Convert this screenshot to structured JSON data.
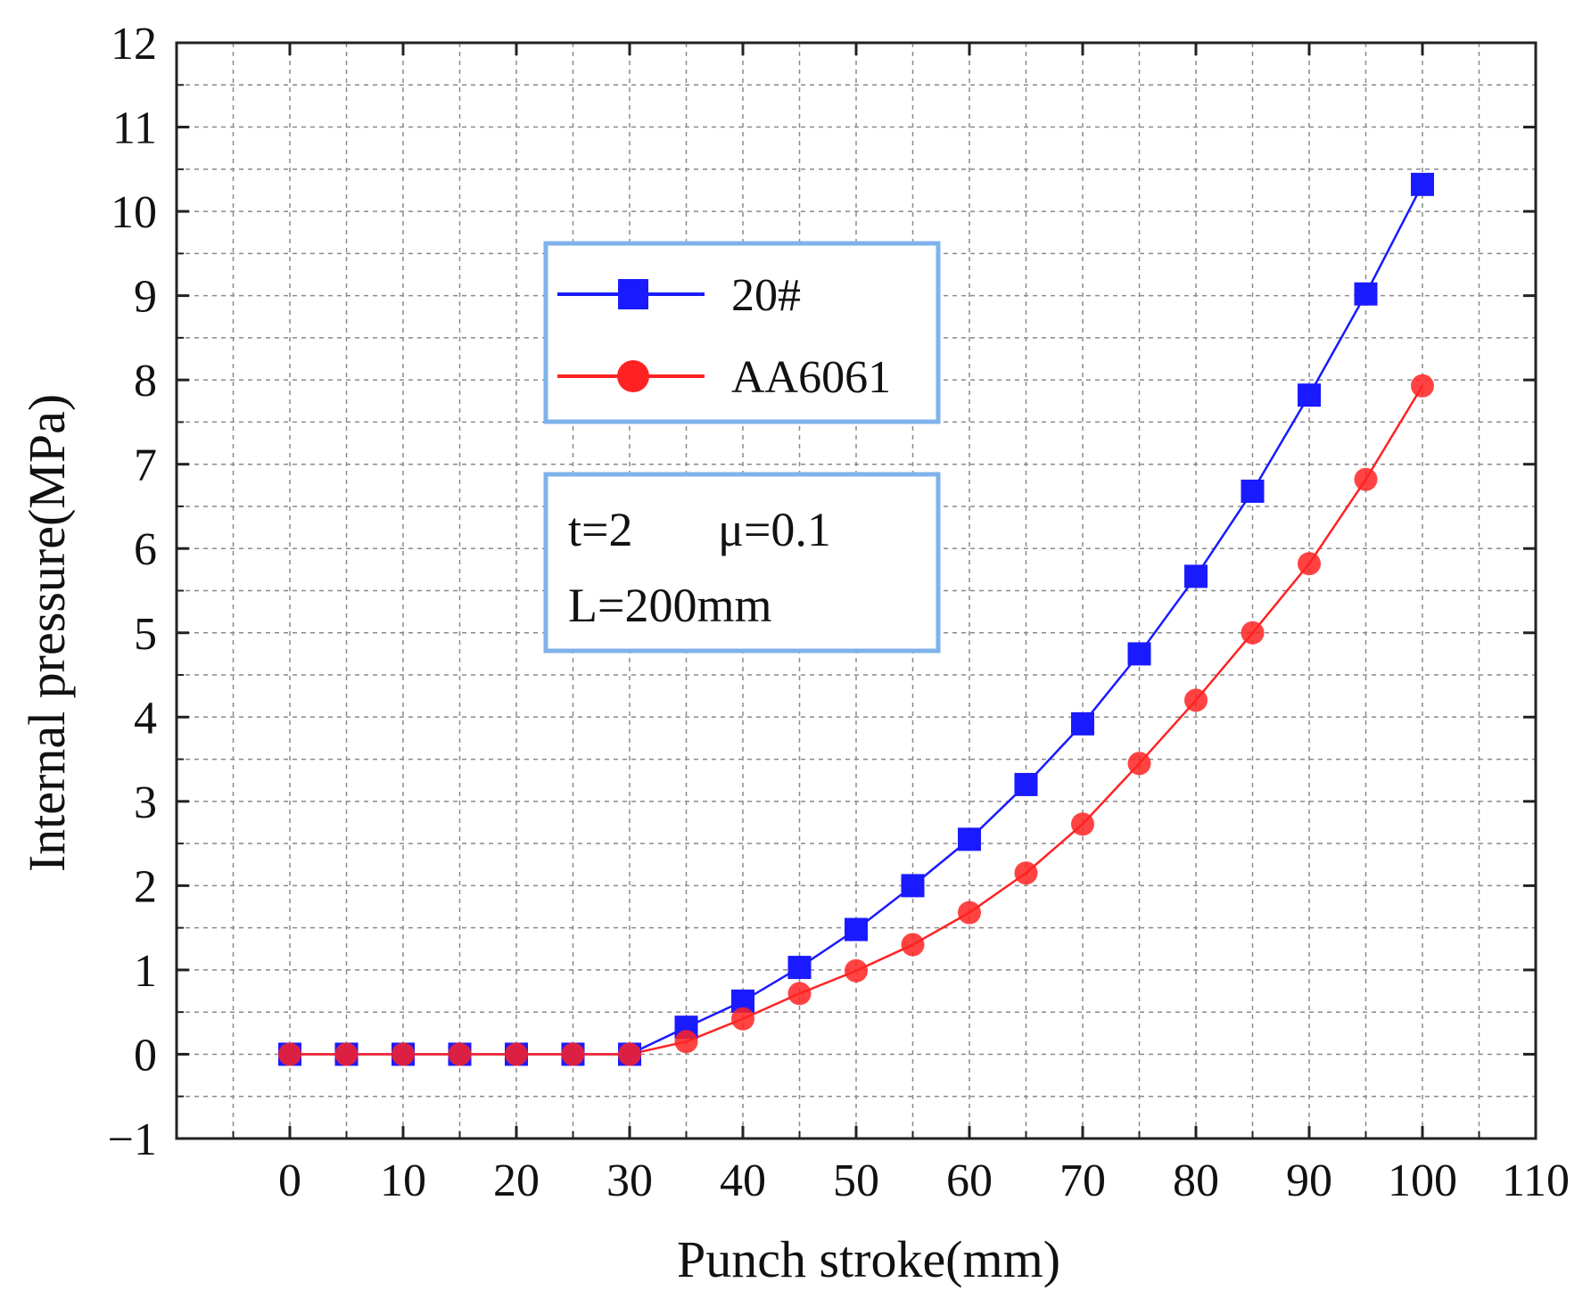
{
  "chart_data": {
    "type": "line",
    "xlabel": "Punch stroke(mm)",
    "ylabel": "Internal pressure(MPa)",
    "xlim": [
      -10,
      110
    ],
    "ylim": [
      -1,
      12
    ],
    "xticks": [
      0,
      10,
      20,
      30,
      40,
      50,
      60,
      70,
      80,
      90,
      100,
      110
    ],
    "yticks": [
      -1,
      0,
      1,
      2,
      3,
      4,
      5,
      6,
      7,
      8,
      9,
      10,
      11,
      12
    ],
    "xtick_labels": [
      "0",
      "10",
      "20",
      "30",
      "40",
      "50",
      "60",
      "70",
      "80",
      "90",
      "100",
      "110"
    ],
    "ytick_labels": [
      "−1",
      "0",
      "1",
      "2",
      "3",
      "4",
      "5",
      "6",
      "7",
      "8",
      "9",
      "10",
      "11",
      "12"
    ],
    "grid": true,
    "x": [
      0,
      5,
      10,
      15,
      20,
      25,
      30,
      35,
      40,
      45,
      50,
      55,
      60,
      65,
      70,
      75,
      80,
      85,
      90,
      95,
      100
    ],
    "series": [
      {
        "name": "20#",
        "color": "#1a1aff",
        "marker": "square",
        "values": [
          0,
          0,
          0,
          0,
          0,
          0,
          0,
          0.32,
          0.63,
          1.03,
          1.48,
          2.0,
          2.55,
          3.2,
          3.92,
          4.75,
          5.67,
          6.68,
          7.82,
          9.02,
          10.32
        ]
      },
      {
        "name": "AA6061",
        "color": "#ff2222",
        "marker": "circle",
        "values": [
          0,
          0,
          0,
          0,
          0,
          0,
          0,
          0.15,
          0.42,
          0.72,
          0.99,
          1.3,
          1.68,
          2.15,
          2.73,
          3.45,
          4.2,
          5.0,
          5.82,
          6.82,
          7.93
        ]
      }
    ],
    "legend": {
      "position": "upper-middle",
      "entries": [
        "20#",
        "AA6061"
      ]
    },
    "annotation": {
      "line1_t": "t=2",
      "line1_mu": "μ=0.1",
      "line2": "L=200mm"
    }
  }
}
